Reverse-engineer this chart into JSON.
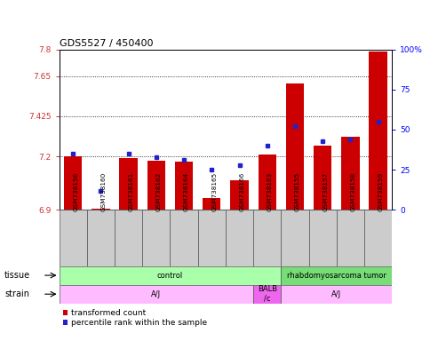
{
  "title": "GDS5527 / 450400",
  "samples": [
    "GSM738156",
    "GSM738160",
    "GSM738161",
    "GSM738162",
    "GSM738164",
    "GSM738165",
    "GSM738166",
    "GSM738163",
    "GSM738155",
    "GSM738157",
    "GSM738158",
    "GSM738159"
  ],
  "bar_values": [
    7.2,
    6.905,
    7.19,
    7.175,
    7.17,
    6.965,
    7.065,
    7.21,
    7.61,
    7.26,
    7.31,
    7.79
  ],
  "dot_values": [
    35,
    12,
    35,
    33,
    31,
    25,
    28,
    40,
    52,
    43,
    44,
    55
  ],
  "ylim": [
    6.9,
    7.8
  ],
  "y2lim": [
    0,
    100
  ],
  "yticks": [
    6.9,
    7.2,
    7.425,
    7.65,
    7.8
  ],
  "ytick_labels": [
    "6.9",
    "7.2",
    "7.425",
    "7.65",
    "7.8"
  ],
  "y2ticks": [
    0,
    25,
    50,
    75,
    100
  ],
  "y2tick_labels": [
    "0",
    "25",
    "50",
    "75",
    "100%"
  ],
  "hlines": [
    7.2,
    7.425,
    7.65
  ],
  "bar_color": "#cc0000",
  "dot_color": "#2222cc",
  "bar_bottom": 6.9,
  "tissue_regions": [
    {
      "text": "control",
      "start": 0,
      "end": 7,
      "color": "#aaffaa"
    },
    {
      "text": "rhabdomyosarcoma tumor",
      "start": 8,
      "end": 11,
      "color": "#77dd77"
    }
  ],
  "strain_regions": [
    {
      "text": "A/J",
      "start": 0,
      "end": 6,
      "color": "#ffbbff"
    },
    {
      "text": "BALB\n/c",
      "start": 7,
      "end": 7,
      "color": "#ee66ee"
    },
    {
      "text": "A/J",
      "start": 8,
      "end": 11,
      "color": "#ffbbff"
    }
  ],
  "legend_red_label": "transformed count",
  "legend_blue_label": "percentile rank within the sample",
  "tissue_label": "tissue",
  "strain_label": "strain"
}
